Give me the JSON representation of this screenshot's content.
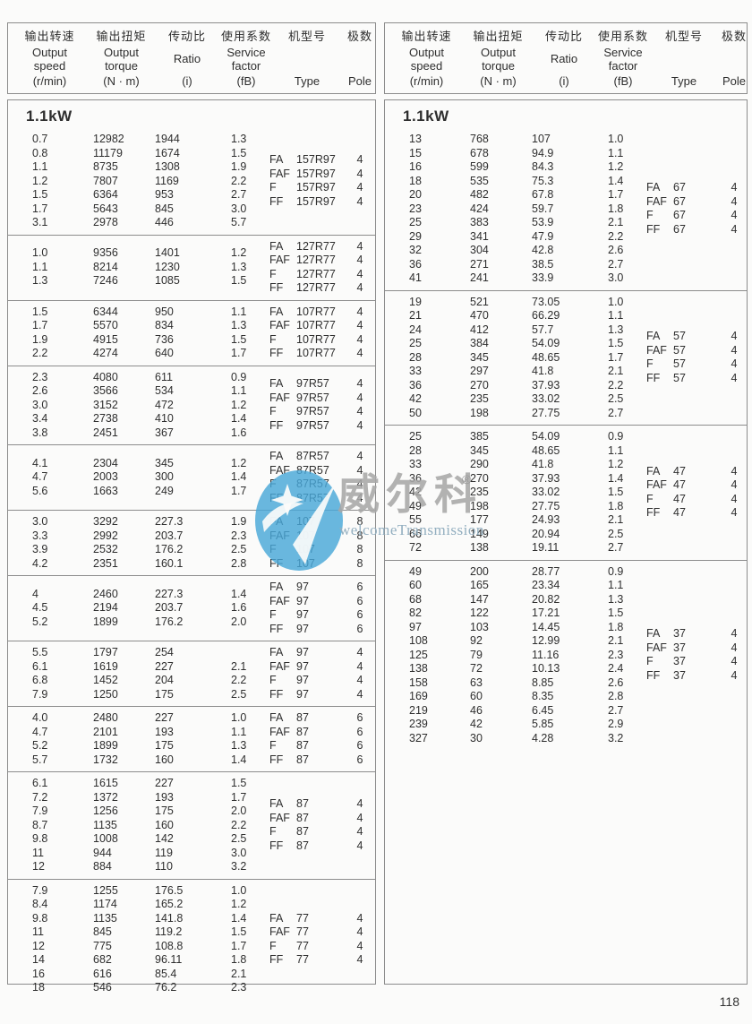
{
  "page": {
    "number": "118"
  },
  "colors": {
    "logo_blue": "#48a7d8",
    "watermark_gray": "#a8a8a8",
    "tagline_blue": "#93afc0",
    "border_gray": "#8c8c8c",
    "text": "#2e2e2e"
  },
  "watermark": {
    "brand": "威尔科",
    "registered": "®",
    "tagline": "welcomeTransmission"
  },
  "header": {
    "columns": [
      {
        "key": "output-speed",
        "zh": "输出转速",
        "en": [
          "Output",
          "speed"
        ],
        "unit": "(r/min)"
      },
      {
        "key": "output-torque",
        "zh": "输出扭矩",
        "en": [
          "Output",
          "torque"
        ],
        "unit": "(N · m)"
      },
      {
        "key": "ratio",
        "zh": "传动比",
        "en": [
          "Ratio"
        ],
        "unit": "(i)"
      },
      {
        "key": "service-factor",
        "zh": "使用系数",
        "en": [
          "Service",
          "factor"
        ],
        "unit": "(fB)"
      },
      {
        "key": "type",
        "zh": "机型号",
        "en": [],
        "unit": "Type"
      },
      {
        "key": "pole",
        "zh": "极数",
        "en": [],
        "unit": "Pole"
      }
    ]
  },
  "left_table": {
    "power": "1.1kW",
    "blocks": [
      {
        "rows": [
          [
            "0.7",
            "12982",
            "1944",
            "1.3"
          ],
          [
            "0.8",
            "11179",
            "1674",
            "1.5"
          ],
          [
            "1.1",
            "8735",
            "1308",
            "1.9"
          ],
          [
            "1.2",
            "7807",
            "1169",
            "2.2"
          ],
          [
            "1.5",
            "6364",
            "953",
            "2.7"
          ],
          [
            "1.7",
            "5643",
            "845",
            "3.0"
          ],
          [
            "3.1",
            "2978",
            "446",
            "5.7"
          ]
        ],
        "types": [
          {
            "prefix": "FA",
            "model": "157R97",
            "pole": "4"
          },
          {
            "prefix": "FAF",
            "model": "157R97",
            "pole": "4"
          },
          {
            "prefix": "F",
            "model": "157R97",
            "pole": "4"
          },
          {
            "prefix": "FF",
            "model": "157R97",
            "pole": "4"
          }
        ]
      },
      {
        "rows": [
          [
            "1.0",
            "9356",
            "1401",
            "1.2"
          ],
          [
            "1.1",
            "8214",
            "1230",
            "1.3"
          ],
          [
            "1.3",
            "7246",
            "1085",
            "1.5"
          ]
        ],
        "types": [
          {
            "prefix": "FA",
            "model": "127R77",
            "pole": "4"
          },
          {
            "prefix": "FAF",
            "model": "127R77",
            "pole": "4"
          },
          {
            "prefix": "F",
            "model": "127R77",
            "pole": "4"
          },
          {
            "prefix": "FF",
            "model": "127R77",
            "pole": "4"
          }
        ]
      },
      {
        "rows": [
          [
            "1.5",
            "6344",
            "950",
            "1.1"
          ],
          [
            "1.7",
            "5570",
            "834",
            "1.3"
          ],
          [
            "1.9",
            "4915",
            "736",
            "1.5"
          ],
          [
            "2.2",
            "4274",
            "640",
            "1.7"
          ]
        ],
        "types": [
          {
            "prefix": "FA",
            "model": "107R77",
            "pole": "4"
          },
          {
            "prefix": "FAF",
            "model": "107R77",
            "pole": "4"
          },
          {
            "prefix": "F",
            "model": "107R77",
            "pole": "4"
          },
          {
            "prefix": "FF",
            "model": "107R77",
            "pole": "4"
          }
        ]
      },
      {
        "rows": [
          [
            "2.3",
            "4080",
            "611",
            "0.9"
          ],
          [
            "2.6",
            "3566",
            "534",
            "1.1"
          ],
          [
            "3.0",
            "3152",
            "472",
            "1.2"
          ],
          [
            "3.4",
            "2738",
            "410",
            "1.4"
          ],
          [
            "3.8",
            "2451",
            "367",
            "1.6"
          ]
        ],
        "types": [
          {
            "prefix": "FA",
            "model": "97R57",
            "pole": "4"
          },
          {
            "prefix": "FAF",
            "model": "97R57",
            "pole": "4"
          },
          {
            "prefix": "F",
            "model": "97R57",
            "pole": "4"
          },
          {
            "prefix": "FF",
            "model": "97R57",
            "pole": "4"
          }
        ]
      },
      {
        "rows": [
          [
            "4.1",
            "2304",
            "345",
            "1.2"
          ],
          [
            "4.7",
            "2003",
            "300",
            "1.4"
          ],
          [
            "5.6",
            "1663",
            "249",
            "1.7"
          ]
        ],
        "types": [
          {
            "prefix": "FA",
            "model": "87R57",
            "pole": "4"
          },
          {
            "prefix": "FAF",
            "model": "87R57",
            "pole": "4"
          },
          {
            "prefix": "F",
            "model": "87R57",
            "pole": "4"
          },
          {
            "prefix": "FF",
            "model": "87R57",
            "pole": "4"
          }
        ]
      },
      {
        "rows": [
          [
            "3.0",
            "3292",
            "227.3",
            "1.9"
          ],
          [
            "3.3",
            "2992",
            "203.7",
            "2.3"
          ],
          [
            "3.9",
            "2532",
            "176.2",
            "2.5"
          ],
          [
            "4.2",
            "2351",
            "160.1",
            "2.8"
          ]
        ],
        "types": [
          {
            "prefix": "FA",
            "model": "107",
            "pole": "8"
          },
          {
            "prefix": "FAF",
            "model": "107",
            "pole": "8"
          },
          {
            "prefix": "F",
            "model": "107",
            "pole": "8"
          },
          {
            "prefix": "FF",
            "model": "107",
            "pole": "8"
          }
        ]
      },
      {
        "rows": [
          [
            "4",
            "2460",
            "227.3",
            "1.4"
          ],
          [
            "4.5",
            "2194",
            "203.7",
            "1.6"
          ],
          [
            "5.2",
            "1899",
            "176.2",
            "2.0"
          ]
        ],
        "types": [
          {
            "prefix": "FA",
            "model": "97",
            "pole": "6"
          },
          {
            "prefix": "FAF",
            "model": "97",
            "pole": "6"
          },
          {
            "prefix": "F",
            "model": "97",
            "pole": "6"
          },
          {
            "prefix": "FF",
            "model": "97",
            "pole": "6"
          }
        ]
      },
      {
        "rows": [
          [
            "5.5",
            "1797",
            "254",
            ""
          ],
          [
            "6.1",
            "1619",
            "227",
            "2.1"
          ],
          [
            "6.8",
            "1452",
            "204",
            "2.2"
          ],
          [
            "7.9",
            "1250",
            "175",
            "2.5"
          ]
        ],
        "types": [
          {
            "prefix": "FA",
            "model": "97",
            "pole": "4"
          },
          {
            "prefix": "FAF",
            "model": "97",
            "pole": "4"
          },
          {
            "prefix": "F",
            "model": "97",
            "pole": "4"
          },
          {
            "prefix": "FF",
            "model": "97",
            "pole": "4"
          }
        ]
      },
      {
        "rows": [
          [
            "4.0",
            "2480",
            "227",
            "1.0"
          ],
          [
            "4.7",
            "2101",
            "193",
            "1.1"
          ],
          [
            "5.2",
            "1899",
            "175",
            "1.3"
          ],
          [
            "5.7",
            "1732",
            "160",
            "1.4"
          ]
        ],
        "types": [
          {
            "prefix": "FA",
            "model": "87",
            "pole": "6"
          },
          {
            "prefix": "FAF",
            "model": "87",
            "pole": "6"
          },
          {
            "prefix": "F",
            "model": "87",
            "pole": "6"
          },
          {
            "prefix": "FF",
            "model": "87",
            "pole": "6"
          }
        ]
      },
      {
        "rows": [
          [
            "6.1",
            "1615",
            "227",
            "1.5"
          ],
          [
            "7.2",
            "1372",
            "193",
            "1.7"
          ],
          [
            "7.9",
            "1256",
            "175",
            "2.0"
          ],
          [
            "8.7",
            "1135",
            "160",
            "2.2"
          ],
          [
            "9.8",
            "1008",
            "142",
            "2.5"
          ],
          [
            "11",
            "944",
            "119",
            "3.0"
          ],
          [
            "12",
            "884",
            "110",
            "3.2"
          ]
        ],
        "types": [
          {
            "prefix": "FA",
            "model": "87",
            "pole": "4"
          },
          {
            "prefix": "FAF",
            "model": "87",
            "pole": "4"
          },
          {
            "prefix": "F",
            "model": "87",
            "pole": "4"
          },
          {
            "prefix": "FF",
            "model": "87",
            "pole": "4"
          }
        ]
      },
      {
        "rows": [
          [
            "7.9",
            "1255",
            "176.5",
            "1.0"
          ],
          [
            "8.4",
            "1174",
            "165.2",
            "1.2"
          ],
          [
            "9.8",
            "1135",
            "141.8",
            "1.4"
          ],
          [
            "11",
            "845",
            "119.2",
            "1.5"
          ],
          [
            "12",
            "775",
            "108.8",
            "1.7"
          ],
          [
            "14",
            "682",
            "96.11",
            "1.8"
          ],
          [
            "16",
            "616",
            "85.4",
            "2.1"
          ],
          [
            "18",
            "546",
            "76.2",
            "2.3"
          ]
        ],
        "types": [
          {
            "prefix": "FA",
            "model": "77",
            "pole": "4"
          },
          {
            "prefix": "FAF",
            "model": "77",
            "pole": "4"
          },
          {
            "prefix": "F",
            "model": "77",
            "pole": "4"
          },
          {
            "prefix": "FF",
            "model": "77",
            "pole": "4"
          }
        ]
      }
    ]
  },
  "right_table": {
    "power": "1.1kW",
    "blocks": [
      {
        "rows": [
          [
            "13",
            "768",
            "107",
            "1.0"
          ],
          [
            "15",
            "678",
            "94.9",
            "1.1"
          ],
          [
            "16",
            "599",
            "84.3",
            "1.2"
          ],
          [
            "18",
            "535",
            "75.3",
            "1.4"
          ],
          [
            "20",
            "482",
            "67.8",
            "1.7"
          ],
          [
            "23",
            "424",
            "59.7",
            "1.8"
          ],
          [
            "25",
            "383",
            "53.9",
            "2.1"
          ],
          [
            "29",
            "341",
            "47.9",
            "2.2"
          ],
          [
            "32",
            "304",
            "42.8",
            "2.6"
          ],
          [
            "36",
            "271",
            "38.5",
            "2.7"
          ],
          [
            "41",
            "241",
            "33.9",
            "3.0"
          ]
        ],
        "types": [
          {
            "prefix": "FA",
            "model": "67",
            "pole": "4"
          },
          {
            "prefix": "FAF",
            "model": "67",
            "pole": "4"
          },
          {
            "prefix": "F",
            "model": "67",
            "pole": "4"
          },
          {
            "prefix": "FF",
            "model": "67",
            "pole": "4"
          }
        ]
      },
      {
        "rows": [
          [
            "19",
            "521",
            "73.05",
            "1.0"
          ],
          [
            "21",
            "470",
            "66.29",
            "1.1"
          ],
          [
            "24",
            "412",
            "57.7",
            "1.3"
          ],
          [
            "25",
            "384",
            "54.09",
            "1.5"
          ],
          [
            "28",
            "345",
            "48.65",
            "1.7"
          ],
          [
            "33",
            "297",
            "41.8",
            "2.1"
          ],
          [
            "36",
            "270",
            "37.93",
            "2.2"
          ],
          [
            "42",
            "235",
            "33.02",
            "2.5"
          ],
          [
            "50",
            "198",
            "27.75",
            "2.7"
          ]
        ],
        "types": [
          {
            "prefix": "FA",
            "model": "57",
            "pole": "4"
          },
          {
            "prefix": "FAF",
            "model": "57",
            "pole": "4"
          },
          {
            "prefix": "F",
            "model": "57",
            "pole": "4"
          },
          {
            "prefix": "FF",
            "model": "57",
            "pole": "4"
          }
        ]
      },
      {
        "rows": [
          [
            "25",
            "385",
            "54.09",
            "0.9"
          ],
          [
            "28",
            "345",
            "48.65",
            "1.1"
          ],
          [
            "33",
            "290",
            "41.8",
            "1.2"
          ],
          [
            "36",
            "270",
            "37.93",
            "1.4"
          ],
          [
            "42",
            "235",
            "33.02",
            "1.5"
          ],
          [
            "49",
            "198",
            "27.75",
            "1.8"
          ],
          [
            "55",
            "177",
            "24.93",
            "2.1"
          ],
          [
            "66",
            "149",
            "20.94",
            "2.5"
          ],
          [
            "72",
            "138",
            "19.11",
            "2.7"
          ]
        ],
        "types": [
          {
            "prefix": "FA",
            "model": "47",
            "pole": "4"
          },
          {
            "prefix": "FAF",
            "model": "47",
            "pole": "4"
          },
          {
            "prefix": "F",
            "model": "47",
            "pole": "4"
          },
          {
            "prefix": "FF",
            "model": "47",
            "pole": "4"
          }
        ]
      },
      {
        "rows": [
          [
            "49",
            "200",
            "28.77",
            "0.9"
          ],
          [
            "60",
            "165",
            "23.34",
            "1.1"
          ],
          [
            "68",
            "147",
            "20.82",
            "1.3"
          ],
          [
            "82",
            "122",
            "17.21",
            "1.5"
          ],
          [
            "97",
            "103",
            "14.45",
            "1.8"
          ],
          [
            "108",
            "92",
            "12.99",
            "2.1"
          ],
          [
            "125",
            "79",
            "11.16",
            "2.3"
          ],
          [
            "138",
            "72",
            "10.13",
            "2.4"
          ],
          [
            "158",
            "63",
            "8.85",
            "2.6"
          ],
          [
            "169",
            "60",
            "8.35",
            "2.8"
          ],
          [
            "219",
            "46",
            "6.45",
            "2.7"
          ],
          [
            "239",
            "42",
            "5.85",
            "2.9"
          ],
          [
            "327",
            "30",
            "4.28",
            "3.2"
          ]
        ],
        "types": [
          {
            "prefix": "FA",
            "model": "37",
            "pole": "4"
          },
          {
            "prefix": "FAF",
            "model": "37",
            "pole": "4"
          },
          {
            "prefix": "F",
            "model": "37",
            "pole": "4"
          },
          {
            "prefix": "FF",
            "model": "37",
            "pole": "4"
          }
        ]
      }
    ]
  }
}
